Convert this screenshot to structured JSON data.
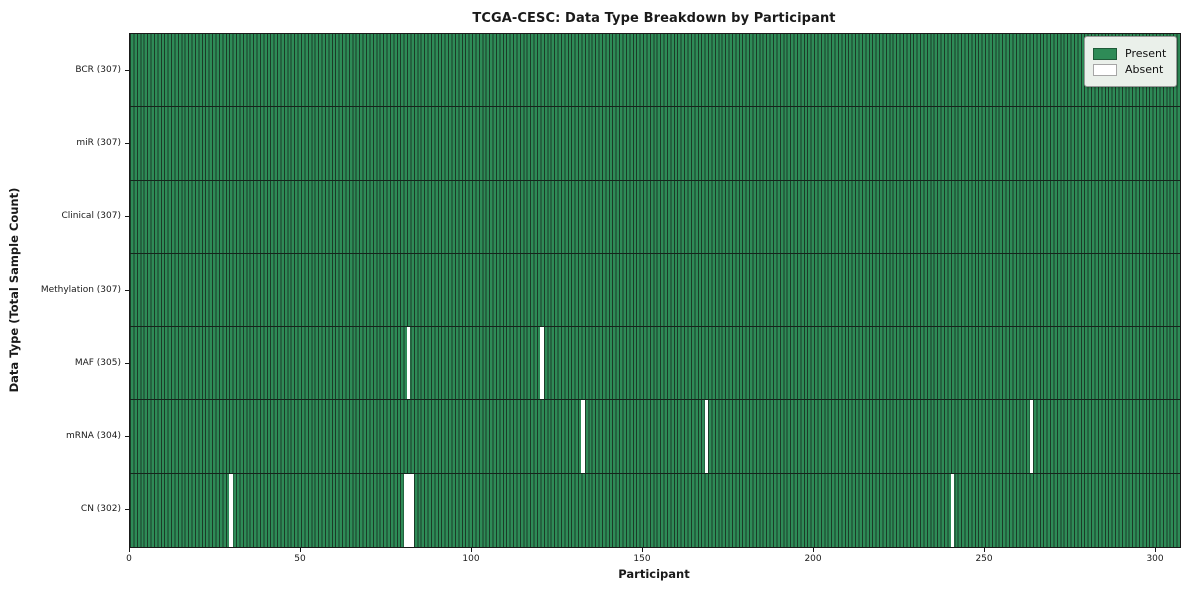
{
  "chart_data": {
    "type": "heatmap",
    "title": "TCGA-CESC: Data Type Breakdown by Participant",
    "xlabel": "Participant",
    "ylabel": "Data Type (Total Sample Count)",
    "xlim": [
      0,
      307
    ],
    "n_participants": 307,
    "x_ticks": [
      0,
      50,
      100,
      150,
      200,
      250,
      300
    ],
    "grid": false,
    "legend_position": "upper right",
    "legend": [
      {
        "label": "Present",
        "color": "#2e8b57"
      },
      {
        "label": "Absent",
        "color": "#ffffff"
      }
    ],
    "rows": [
      {
        "label": "BCR (307)",
        "data_type": "BCR",
        "present_count": 307,
        "absent_participants": []
      },
      {
        "label": "miR (307)",
        "data_type": "miR",
        "present_count": 307,
        "absent_participants": []
      },
      {
        "label": "Clinical (307)",
        "data_type": "Clinical",
        "present_count": 307,
        "absent_participants": []
      },
      {
        "label": "Methylation (307)",
        "data_type": "Methylation",
        "present_count": 307,
        "absent_participants": []
      },
      {
        "label": "MAF (305)",
        "data_type": "MAF",
        "present_count": 305,
        "absent_participants": [
          81,
          120
        ]
      },
      {
        "label": "mRNA (304)",
        "data_type": "mRNA",
        "present_count": 304,
        "absent_participants": [
          132,
          168,
          263
        ]
      },
      {
        "label": "CN (302)",
        "data_type": "CN",
        "present_count": 302,
        "absent_participants": [
          29,
          80,
          81,
          82,
          240
        ]
      }
    ],
    "colors": {
      "present": "#2e8b57",
      "absent": "#ffffff",
      "cell_edge": "#1b3b28",
      "row_separator": "#15251c",
      "spine": "#1a1a1a",
      "legend_bg": "#eaf0ea",
      "legend_border": "#999999"
    }
  }
}
